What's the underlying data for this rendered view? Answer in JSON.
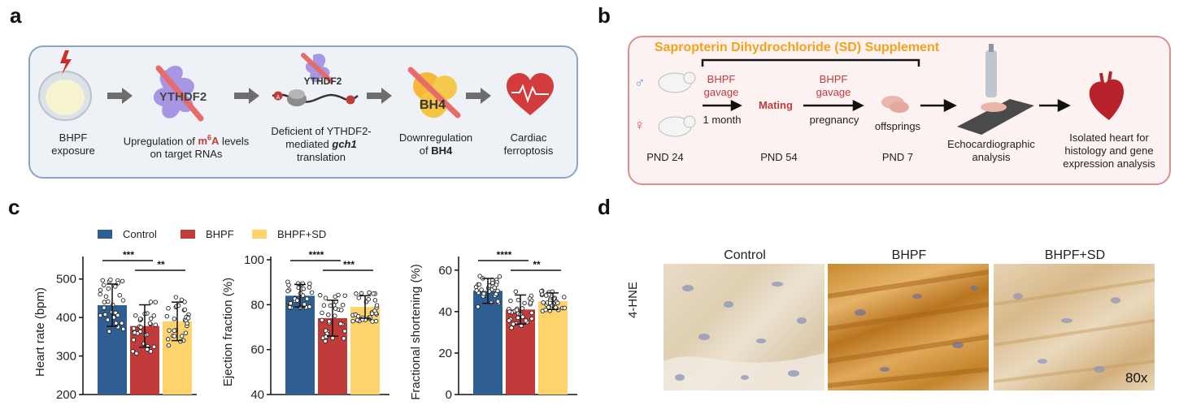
{
  "panels": {
    "a": "a",
    "b": "b",
    "c": "c",
    "d": "d"
  },
  "panel_a": {
    "steps": [
      {
        "line1": "BHPF",
        "line2": "exposure"
      },
      {
        "line1": "Upregulation of ",
        "m6a_main": "m",
        "m6a_sup": "6",
        "m6a_end": "A",
        "line1_end": " levels",
        "line2": "on target RNAs"
      },
      {
        "line1": "Deficient of YTHDF2-",
        "line2_pre": "mediated ",
        "line2_bold": "gch1",
        "line3": "translation"
      },
      {
        "line1": "Downregulation",
        "line2_pre": "of ",
        "line2_bold": "BH4"
      },
      {
        "line1": "Cardiac",
        "line2": "ferroptosis"
      }
    ],
    "icon_labels": {
      "ythdf2_main": "YTHDF2",
      "ythdf2_small": "YTHDF2",
      "bh4": "BH4",
      "m6a_tag": "A"
    }
  },
  "panel_b": {
    "supplement": "Sapropterin Dihydrochloride (SD) Supplement",
    "male_symbol": "♂",
    "female_symbol": "♀",
    "gavage1": {
      "line1": "BHPF",
      "line2": "gavage",
      "duration": "1 month"
    },
    "mating": "Mating",
    "gavage2": {
      "line1": "BHPF",
      "line2": "gavage",
      "duration": "pregnancy"
    },
    "offsprings": "offsprings",
    "timepoints": [
      "PND 24",
      "PND 54",
      "PND 7"
    ],
    "echo": {
      "line1": "Echocardiographic",
      "line2": "analysis"
    },
    "heart": {
      "line1": "Isolated heart for",
      "line2": "histology and gene",
      "line3": "expression analysis"
    }
  },
  "panel_c": {
    "legend": [
      {
        "name": "Control",
        "color": "#2f5f92"
      },
      {
        "name": "BHPF",
        "color": "#c23b3b"
      },
      {
        "name": "BHPF+SD",
        "color": "#ffd36b"
      }
    ]
  },
  "chart_data": [
    {
      "type": "bar",
      "ylabel": "Heart rate (bpm)",
      "ylim": [
        200,
        550
      ],
      "yticks": [
        200,
        300,
        400,
        500
      ],
      "categories": [
        "Control",
        "BHPF",
        "BHPF+SD"
      ],
      "values": [
        432,
        378,
        390
      ],
      "errors": [
        55,
        55,
        50
      ],
      "significance": [
        {
          "from": 0,
          "to": 1,
          "label": "***"
        },
        {
          "from": 1,
          "to": 2,
          "label": "**"
        }
      ]
    },
    {
      "type": "bar",
      "ylabel": "Ejection fraction (%)",
      "ylim": [
        40,
        100
      ],
      "yticks": [
        40,
        60,
        80,
        100
      ],
      "categories": [
        "Control",
        "BHPF",
        "BHPF+SD"
      ],
      "values": [
        84,
        74,
        79
      ],
      "errors": [
        5,
        8,
        5
      ],
      "significance": [
        {
          "from": 0,
          "to": 1,
          "label": "****"
        },
        {
          "from": 1,
          "to": 2,
          "label": "***"
        }
      ]
    },
    {
      "type": "bar",
      "ylabel": "Fractional shortening (%)",
      "ylim": [
        0,
        65
      ],
      "yticks": [
        0,
        20,
        40,
        60
      ],
      "categories": [
        "Control",
        "BHPF",
        "BHPF+SD"
      ],
      "values": [
        50,
        41,
        45
      ],
      "errors": [
        6,
        7,
        4
      ],
      "significance": [
        {
          "from": 0,
          "to": 1,
          "label": "****"
        },
        {
          "from": 1,
          "to": 2,
          "label": "**"
        }
      ]
    }
  ],
  "panel_d": {
    "columns": [
      "Control",
      "BHPF",
      "BHPF+SD"
    ],
    "row_label": "4-HNE",
    "magnification": "80x"
  },
  "colors": {
    "blue": "#2f5f92",
    "red": "#c23b3b",
    "yellow": "#ffd36b",
    "orange": "#f3a21b"
  }
}
